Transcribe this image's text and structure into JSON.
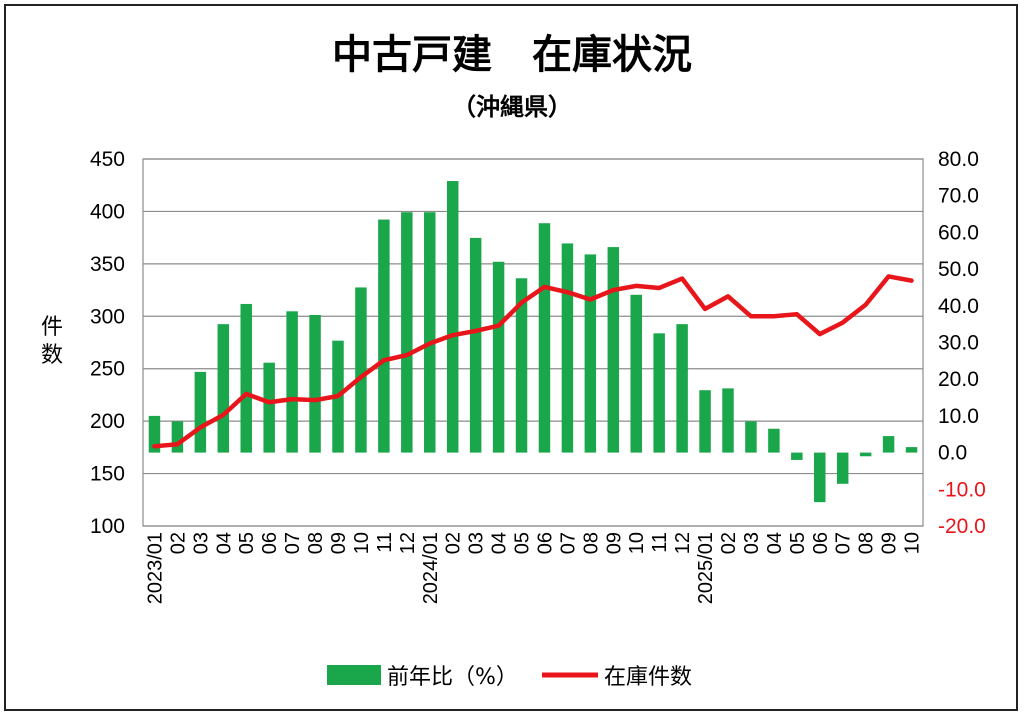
{
  "chart_data": {
    "type": "bar+line",
    "title": "中古戸建　在庫状況",
    "subtitle": "（沖縄県）",
    "ylabel": "件数",
    "y_left_range": [
      100,
      450
    ],
    "y_left_ticks": [
      "100",
      "150",
      "200",
      "250",
      "300",
      "350",
      "400",
      "450"
    ],
    "y_right_range": [
      -20,
      80
    ],
    "y_right_ticks": [
      "-20.0",
      "-10.0",
      "0.0",
      "10.0",
      "20.0",
      "30.0",
      "40.0",
      "50.0",
      "60.0",
      "70.0",
      "80.0"
    ],
    "categories": [
      "2023/01",
      "02",
      "03",
      "04",
      "05",
      "06",
      "07",
      "08",
      "09",
      "10",
      "11",
      "12",
      "2024/01",
      "02",
      "03",
      "04",
      "05",
      "06",
      "07",
      "08",
      "09",
      "10",
      "11",
      "12",
      "2025/01",
      "02",
      "03",
      "04",
      "05",
      "06",
      "07",
      "08",
      "09",
      "10"
    ],
    "grid": true,
    "legend_position": "bottom",
    "colors": {
      "bar": "#1aa64a",
      "line": "#e8161b",
      "negative_tick": "#e8161b"
    },
    "series": [
      {
        "name": "前年比（%）",
        "type": "bar",
        "axis": "right",
        "values": [
          10.0,
          8.5,
          22.0,
          35.0,
          40.5,
          24.5,
          38.5,
          37.5,
          30.5,
          45.0,
          63.5,
          65.5,
          65.5,
          74.0,
          58.5,
          52.0,
          47.5,
          62.5,
          57.0,
          54.0,
          56.0,
          43.0,
          32.5,
          35.0,
          17.0,
          17.5,
          8.5,
          6.5,
          -2.0,
          -13.5,
          -8.5,
          -1.0,
          4.5,
          1.5
        ]
      },
      {
        "name": "在庫件数",
        "type": "line",
        "axis": "left",
        "values": [
          176,
          178,
          194,
          206,
          226,
          218,
          221,
          220,
          224,
          242,
          258,
          263,
          274,
          282,
          286,
          291,
          313,
          328,
          323,
          316,
          325,
          329,
          327,
          336,
          307,
          319,
          300,
          300,
          302,
          283,
          294,
          311,
          338,
          334
        ]
      }
    ]
  }
}
